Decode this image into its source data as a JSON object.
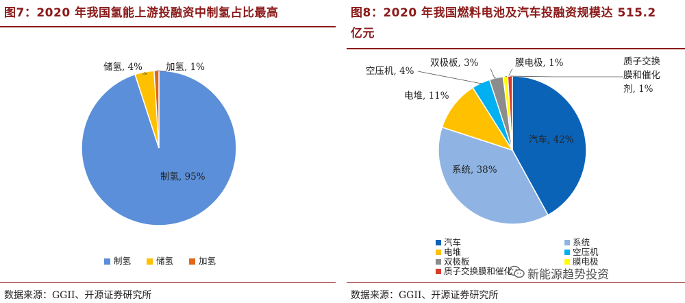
{
  "left_panel": {
    "title": "图7：2020 年我国氢能上游投融资中制氢占比最高",
    "source": "数据来源：GGII、开源证券研究所"
  },
  "right_panel": {
    "title_line1": "图8：2020 年我国燃料电池及汽车投融资规模达 515.2",
    "title_line2": "亿元",
    "source": "数据来源：GGII、开源证券研究所"
  },
  "watermark": {
    "text": "新能源趋势投资",
    "icon": "wechat-icon"
  },
  "chart_data": [
    {
      "type": "pie",
      "title": "图7：2020 年我国氢能上游投融资中制氢占比最高",
      "slices": [
        {
          "label": "制氢",
          "value": 95,
          "text": "制氢, 95%",
          "color": "#5b8fd9"
        },
        {
          "label": "储氢",
          "value": 4,
          "text": "储氢, 4%",
          "color": "#ffc000"
        },
        {
          "label": "加氢",
          "value": 1,
          "text": "加氢, 1%",
          "color": "#e2651a"
        }
      ],
      "legend_position": "bottom"
    },
    {
      "type": "pie",
      "title": "图8：2020 年我国燃料电池及汽车投融资规模达 515.2 亿元",
      "slices": [
        {
          "label": "汽车",
          "value": 42,
          "text": "汽车, 42%",
          "color": "#0b63b8"
        },
        {
          "label": "系统",
          "value": 38,
          "text": "系统, 38%",
          "color": "#8fb4e3"
        },
        {
          "label": "电堆",
          "value": 11,
          "text": "电堆, 11%",
          "color": "#ffc000"
        },
        {
          "label": "空压机",
          "value": 4,
          "text": "空压机, 4%",
          "color": "#00b0f0"
        },
        {
          "label": "双极板",
          "value": 3,
          "text": "双极板, 3%",
          "color": "#8c8c8c"
        },
        {
          "label": "膜电极",
          "value": 1,
          "text": "膜电极, 1%",
          "color": "#ffff00"
        },
        {
          "label": "质子交换膜和催化",
          "value": 1,
          "text_lines": [
            "质子交换",
            "膜和催化",
            "剂, 1%"
          ],
          "color": "#d93a2b"
        }
      ],
      "legend_position": "bottom"
    }
  ]
}
